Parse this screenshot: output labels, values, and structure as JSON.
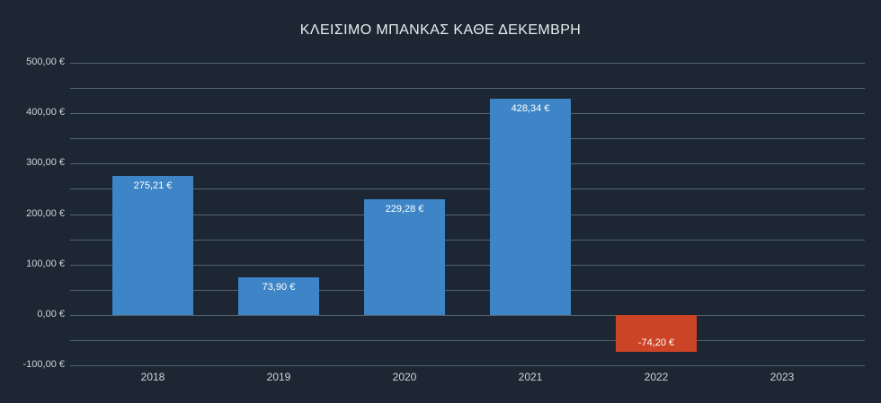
{
  "chart_data": {
    "type": "bar",
    "title": "ΚΛΕΙΣΙΜΟ ΜΠΑΝΚΑΣ ΚΑΘΕ ΔΕΚΕΜΒΡΗ",
    "categories": [
      "2018",
      "2019",
      "2020",
      "2021",
      "2022",
      "2023"
    ],
    "values": [
      275.21,
      73.9,
      229.28,
      428.34,
      -74.2,
      null
    ],
    "bar_labels": [
      "275,21 €",
      "73,90 €",
      "229,28 €",
      "428,34 €",
      "-74,20 €",
      ""
    ],
    "xlabel": "",
    "ylabel": "",
    "ylim": [
      -100,
      500
    ],
    "grid": true,
    "grid_step": 50,
    "legend": "none",
    "yticks": [
      {
        "value": 500,
        "label": "500,00 €"
      },
      {
        "value": 400,
        "label": "400,00 €"
      },
      {
        "value": 300,
        "label": "300,00 €"
      },
      {
        "value": 200,
        "label": "200,00 €"
      },
      {
        "value": 100,
        "label": "100,00 €"
      },
      {
        "value": 0,
        "label": "0,00 €"
      },
      {
        "value": -100,
        "label": "-100,00 €"
      }
    ],
    "colors": {
      "positive_bar": "#3d85c6",
      "negative_bar": "#cc4426",
      "background": "#1c2733",
      "gridline": "#55636f",
      "axis_text": "#cdd5db",
      "bar_label_text": "#ffffff",
      "title_text": "#e9edf0"
    }
  }
}
